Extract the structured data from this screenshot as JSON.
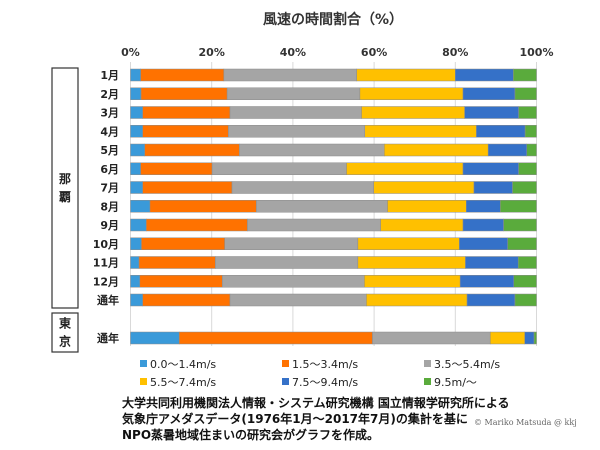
{
  "chart_data": {
    "type": "bar",
    "orientation": "horizontal-stacked-100",
    "title": "風速の時間割合（%）",
    "xlim": [
      0,
      100
    ],
    "x_ticks": [
      "0%",
      "20%",
      "40%",
      "60%",
      "80%",
      "100%"
    ],
    "groups": [
      {
        "label": "那覇",
        "categories": [
          "1月",
          "2月",
          "3月",
          "4月",
          "5月",
          "6月",
          "7月",
          "8月",
          "9月",
          "10月",
          "11月",
          "12月",
          "通年"
        ]
      },
      {
        "label": "東京",
        "categories": [
          "通年"
        ]
      }
    ],
    "series": [
      {
        "name": "0.0〜1.4m/s",
        "color": "#3a9ad9",
        "values": [
          2.5,
          2.6,
          3.0,
          3.0,
          3.5,
          2.5,
          3.0,
          4.8,
          3.9,
          2.7,
          2.1,
          2.3,
          3.0,
          12.0
        ]
      },
      {
        "name": "1.5〜3.4m/s",
        "color": "#ff7200",
        "values": [
          20.5,
          21.2,
          21.5,
          21.1,
          23.3,
          17.6,
          22.0,
          26.2,
          24.9,
          20.5,
          18.8,
          20.3,
          21.5,
          47.6
        ]
      },
      {
        "name": "3.5〜5.4m/s",
        "color": "#a5a5a5",
        "values": [
          32.7,
          32.7,
          32.4,
          33.6,
          35.7,
          33.1,
          34.9,
          32.3,
          32.8,
          32.8,
          35.1,
          35.0,
          33.6,
          29.0
        ]
      },
      {
        "name": "5.5〜7.4m/s",
        "color": "#ffc000",
        "values": [
          24.3,
          25.4,
          25.4,
          27.5,
          25.6,
          28.7,
          24.7,
          19.4,
          20.3,
          25.0,
          26.5,
          23.6,
          24.8,
          8.5
        ]
      },
      {
        "name": "7.5〜9.4m/s",
        "color": "#3571c8",
        "values": [
          14.3,
          12.8,
          13.3,
          12.0,
          9.5,
          13.7,
          9.5,
          8.4,
          10.0,
          11.9,
          13.0,
          13.2,
          11.8,
          2.3
        ]
      },
      {
        "name": "9.5m/〜",
        "color": "#5aab3c",
        "values": [
          5.7,
          5.3,
          4.4,
          2.8,
          2.4,
          4.4,
          5.9,
          8.9,
          8.1,
          7.1,
          4.5,
          5.6,
          5.3,
          0.6
        ]
      }
    ],
    "grid": true,
    "legend_position": "bottom"
  },
  "note_lines": [
    "大学共同利用機関法人情報・システム研究機構 国立情報学研究所による",
    "気象庁アメダスデータ(1976年1月〜2017年7月)の集計を基に",
    "NPO蒸暑地域住まいの研究会がグラフを作成。"
  ],
  "credit": "Mariko Matsuda @ kkj"
}
